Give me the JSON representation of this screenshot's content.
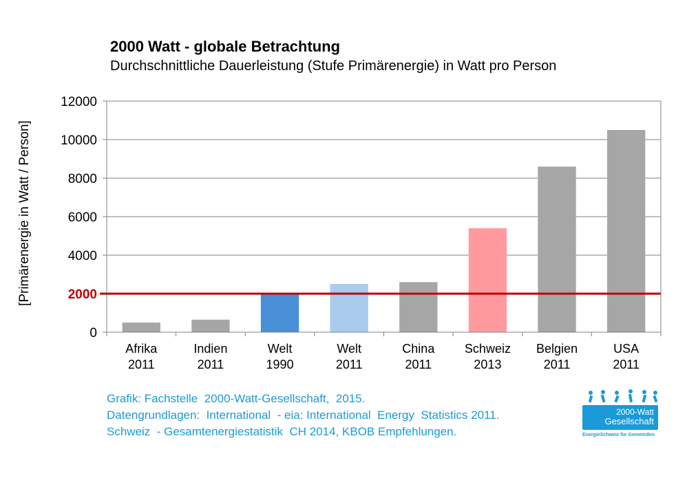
{
  "chart_data": {
    "type": "bar",
    "title": "2000 Watt - globale Betrachtung",
    "subtitle": "Durchschnittliche Dauerleistung (Stufe Primärenergie) in Watt pro Person",
    "ylabel": "[Primärenergie in Watt / Person]",
    "xlabel": "",
    "ylim": [
      0,
      12000
    ],
    "yticks": [
      "0",
      "2000",
      "4000",
      "6000",
      "8000",
      "10000",
      "12000"
    ],
    "grid": true,
    "categories": [
      {
        "name": "Afrika",
        "year": "2011"
      },
      {
        "name": "Indien",
        "year": "2011"
      },
      {
        "name": "Welt",
        "year": "1990"
      },
      {
        "name": "Welt",
        "year": "2011"
      },
      {
        "name": "China",
        "year": "2011"
      },
      {
        "name": "Schweiz",
        "year": "2013"
      },
      {
        "name": "Belgien",
        "year": "2011"
      },
      {
        "name": "USA",
        "year": "2011"
      }
    ],
    "values": [
      500,
      650,
      2000,
      2500,
      2600,
      5400,
      8600,
      10500
    ],
    "bar_colors": [
      "#a6a6a6",
      "#a6a6a6",
      "#4a90d9",
      "#a9cbee",
      "#a6a6a6",
      "#ff9a9e",
      "#a6a6a6",
      "#a6a6a6"
    ],
    "reference_line": {
      "value": 2000,
      "label": "2000",
      "color": "#c00000"
    }
  },
  "source": {
    "line1": "Grafik: Fachstelle  2000-Watt-Gesellschaft,  2015.",
    "line2": "Datengrundlagen:  International  - eia: International  Energy  Statistics 2011.",
    "line3": "Schweiz  - Gesamtenergiestatistik  CH 2014, KBOB Empfehlungen."
  },
  "logo": {
    "line1": "2000-Watt",
    "line2": "Gesellschaft",
    "tagline": "EnergieSchweiz für Gemeinden"
  },
  "colors": {
    "accent": "#1a9ad6",
    "reference": "#c00000",
    "grid": "#808080"
  }
}
